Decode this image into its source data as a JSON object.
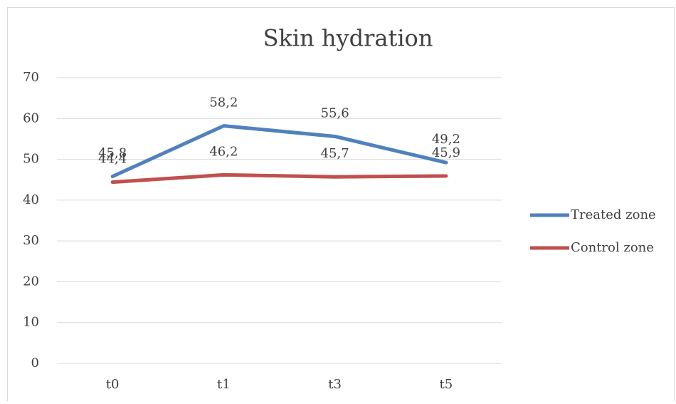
{
  "chart_data": {
    "type": "line",
    "title": "Skin hydration",
    "categories": [
      "t0",
      "t1",
      "t3",
      "t5"
    ],
    "series": [
      {
        "name": "Treated zone",
        "color": "#4f81bd",
        "values": [
          45.8,
          58.2,
          55.6,
          49.2
        ],
        "value_labels": [
          "45,8",
          "58,2",
          "55,6",
          "49,2"
        ]
      },
      {
        "name": "Control zone",
        "color": "#c0504d",
        "values": [
          44.4,
          46.2,
          45.7,
          45.9
        ],
        "value_labels": [
          "44,4",
          "46,2",
          "45,7",
          "45,9"
        ]
      }
    ],
    "ylim": [
      0,
      70
    ],
    "yticks": [
      0,
      10,
      20,
      30,
      40,
      50,
      60,
      70
    ],
    "grid": true,
    "legend": "right"
  }
}
